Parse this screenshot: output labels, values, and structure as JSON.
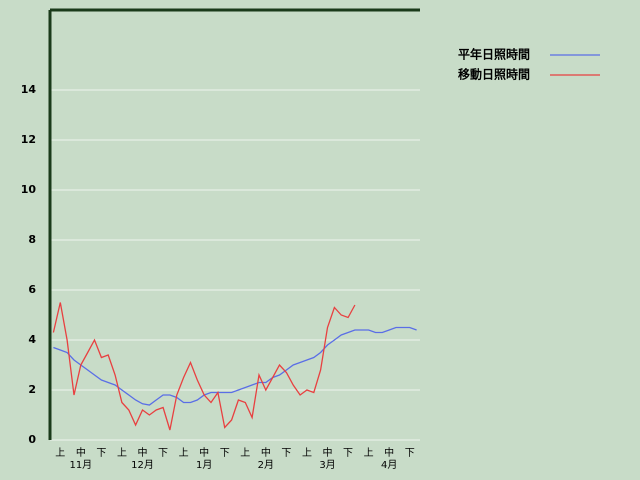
{
  "chart_data": {
    "type": "line",
    "categories": [
      null,
      "上",
      null,
      null,
      "中",
      null,
      null,
      "下",
      null,
      null,
      "上",
      null,
      null,
      "中",
      null,
      null,
      "下",
      null,
      null,
      "上",
      null,
      null,
      "中",
      null,
      null,
      "下",
      null,
      null,
      "上",
      null,
      null,
      "中",
      null,
      null,
      "下",
      null,
      null,
      "上",
      null,
      null,
      "中",
      null,
      null,
      "下",
      null,
      null,
      "上",
      null,
      null,
      "中",
      null,
      null,
      "下",
      null
    ],
    "month_labels": [
      "11月",
      "12月",
      "1月",
      "2月",
      "3月",
      "4月"
    ],
    "series": [
      {
        "name": "平年日照時間",
        "color": "#5a6ee6",
        "values": [
          3.7,
          3.6,
          3.5,
          3.2,
          3.0,
          2.8,
          2.6,
          2.4,
          2.3,
          2.2,
          2.0,
          1.8,
          1.6,
          1.45,
          1.4,
          1.6,
          1.8,
          1.8,
          1.7,
          1.5,
          1.5,
          1.6,
          1.8,
          1.9,
          1.9,
          1.9,
          1.9,
          2.0,
          2.1,
          2.2,
          2.3,
          2.3,
          2.5,
          2.6,
          2.8,
          3.0,
          3.1,
          3.2,
          3.3,
          3.5,
          3.8,
          4.0,
          4.2,
          4.3,
          4.4,
          4.4,
          4.4,
          4.3,
          4.3,
          4.4,
          4.5,
          4.5,
          4.5,
          4.4
        ]
      },
      {
        "name": "移動日照時間",
        "color": "#e84040",
        "values": [
          4.3,
          5.5,
          4.0,
          1.8,
          3.0,
          3.5,
          4.0,
          3.3,
          3.4,
          2.6,
          1.5,
          1.2,
          0.6,
          1.2,
          1.0,
          1.2,
          1.3,
          0.4,
          1.8,
          2.5,
          3.1,
          2.4,
          1.8,
          1.5,
          1.9,
          0.5,
          0.8,
          1.6,
          1.5,
          0.9,
          2.6,
          2.0,
          2.5,
          3.0,
          2.7,
          2.2,
          1.8,
          2.0,
          1.9,
          2.8,
          4.5,
          5.3,
          5.0,
          4.9,
          5.4,
          null,
          null,
          null,
          null,
          null,
          null,
          null,
          null,
          null
        ]
      }
    ],
    "ylim": [
      0,
      17.2
    ],
    "yticks": [
      0,
      2,
      4,
      6,
      8,
      10,
      12,
      14
    ],
    "grid": true,
    "legend": "top-right"
  }
}
